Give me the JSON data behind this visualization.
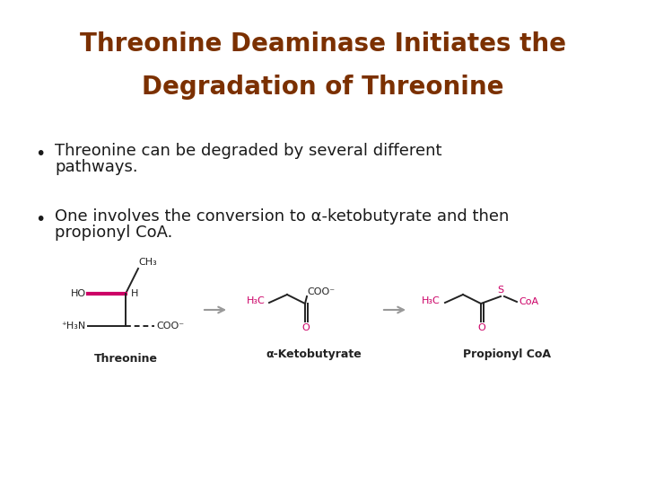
{
  "title_line1": "Threonine Deaminase Initiates the",
  "title_line2": "Degradation of Threonine",
  "title_color": "#7B3000",
  "title_fontsize": 20,
  "bullet1_line1": "Threonine can be degraded by several different",
  "bullet1_line2": "pathways.",
  "bullet2_line1": "One involves the conversion to α-ketobutyrate and then",
  "bullet2_line2": "propionyl CoA.",
  "bullet_fontsize": 13,
  "bullet_color": "#1a1a1a",
  "bg_color": "#FFFFFF",
  "pink_color": "#CC0066",
  "black_color": "#222222",
  "label1": "Threonine",
  "label2": "α-Ketobutyrate",
  "label3": "Propionyl CoA",
  "arrow_color": "#aaaaaa"
}
